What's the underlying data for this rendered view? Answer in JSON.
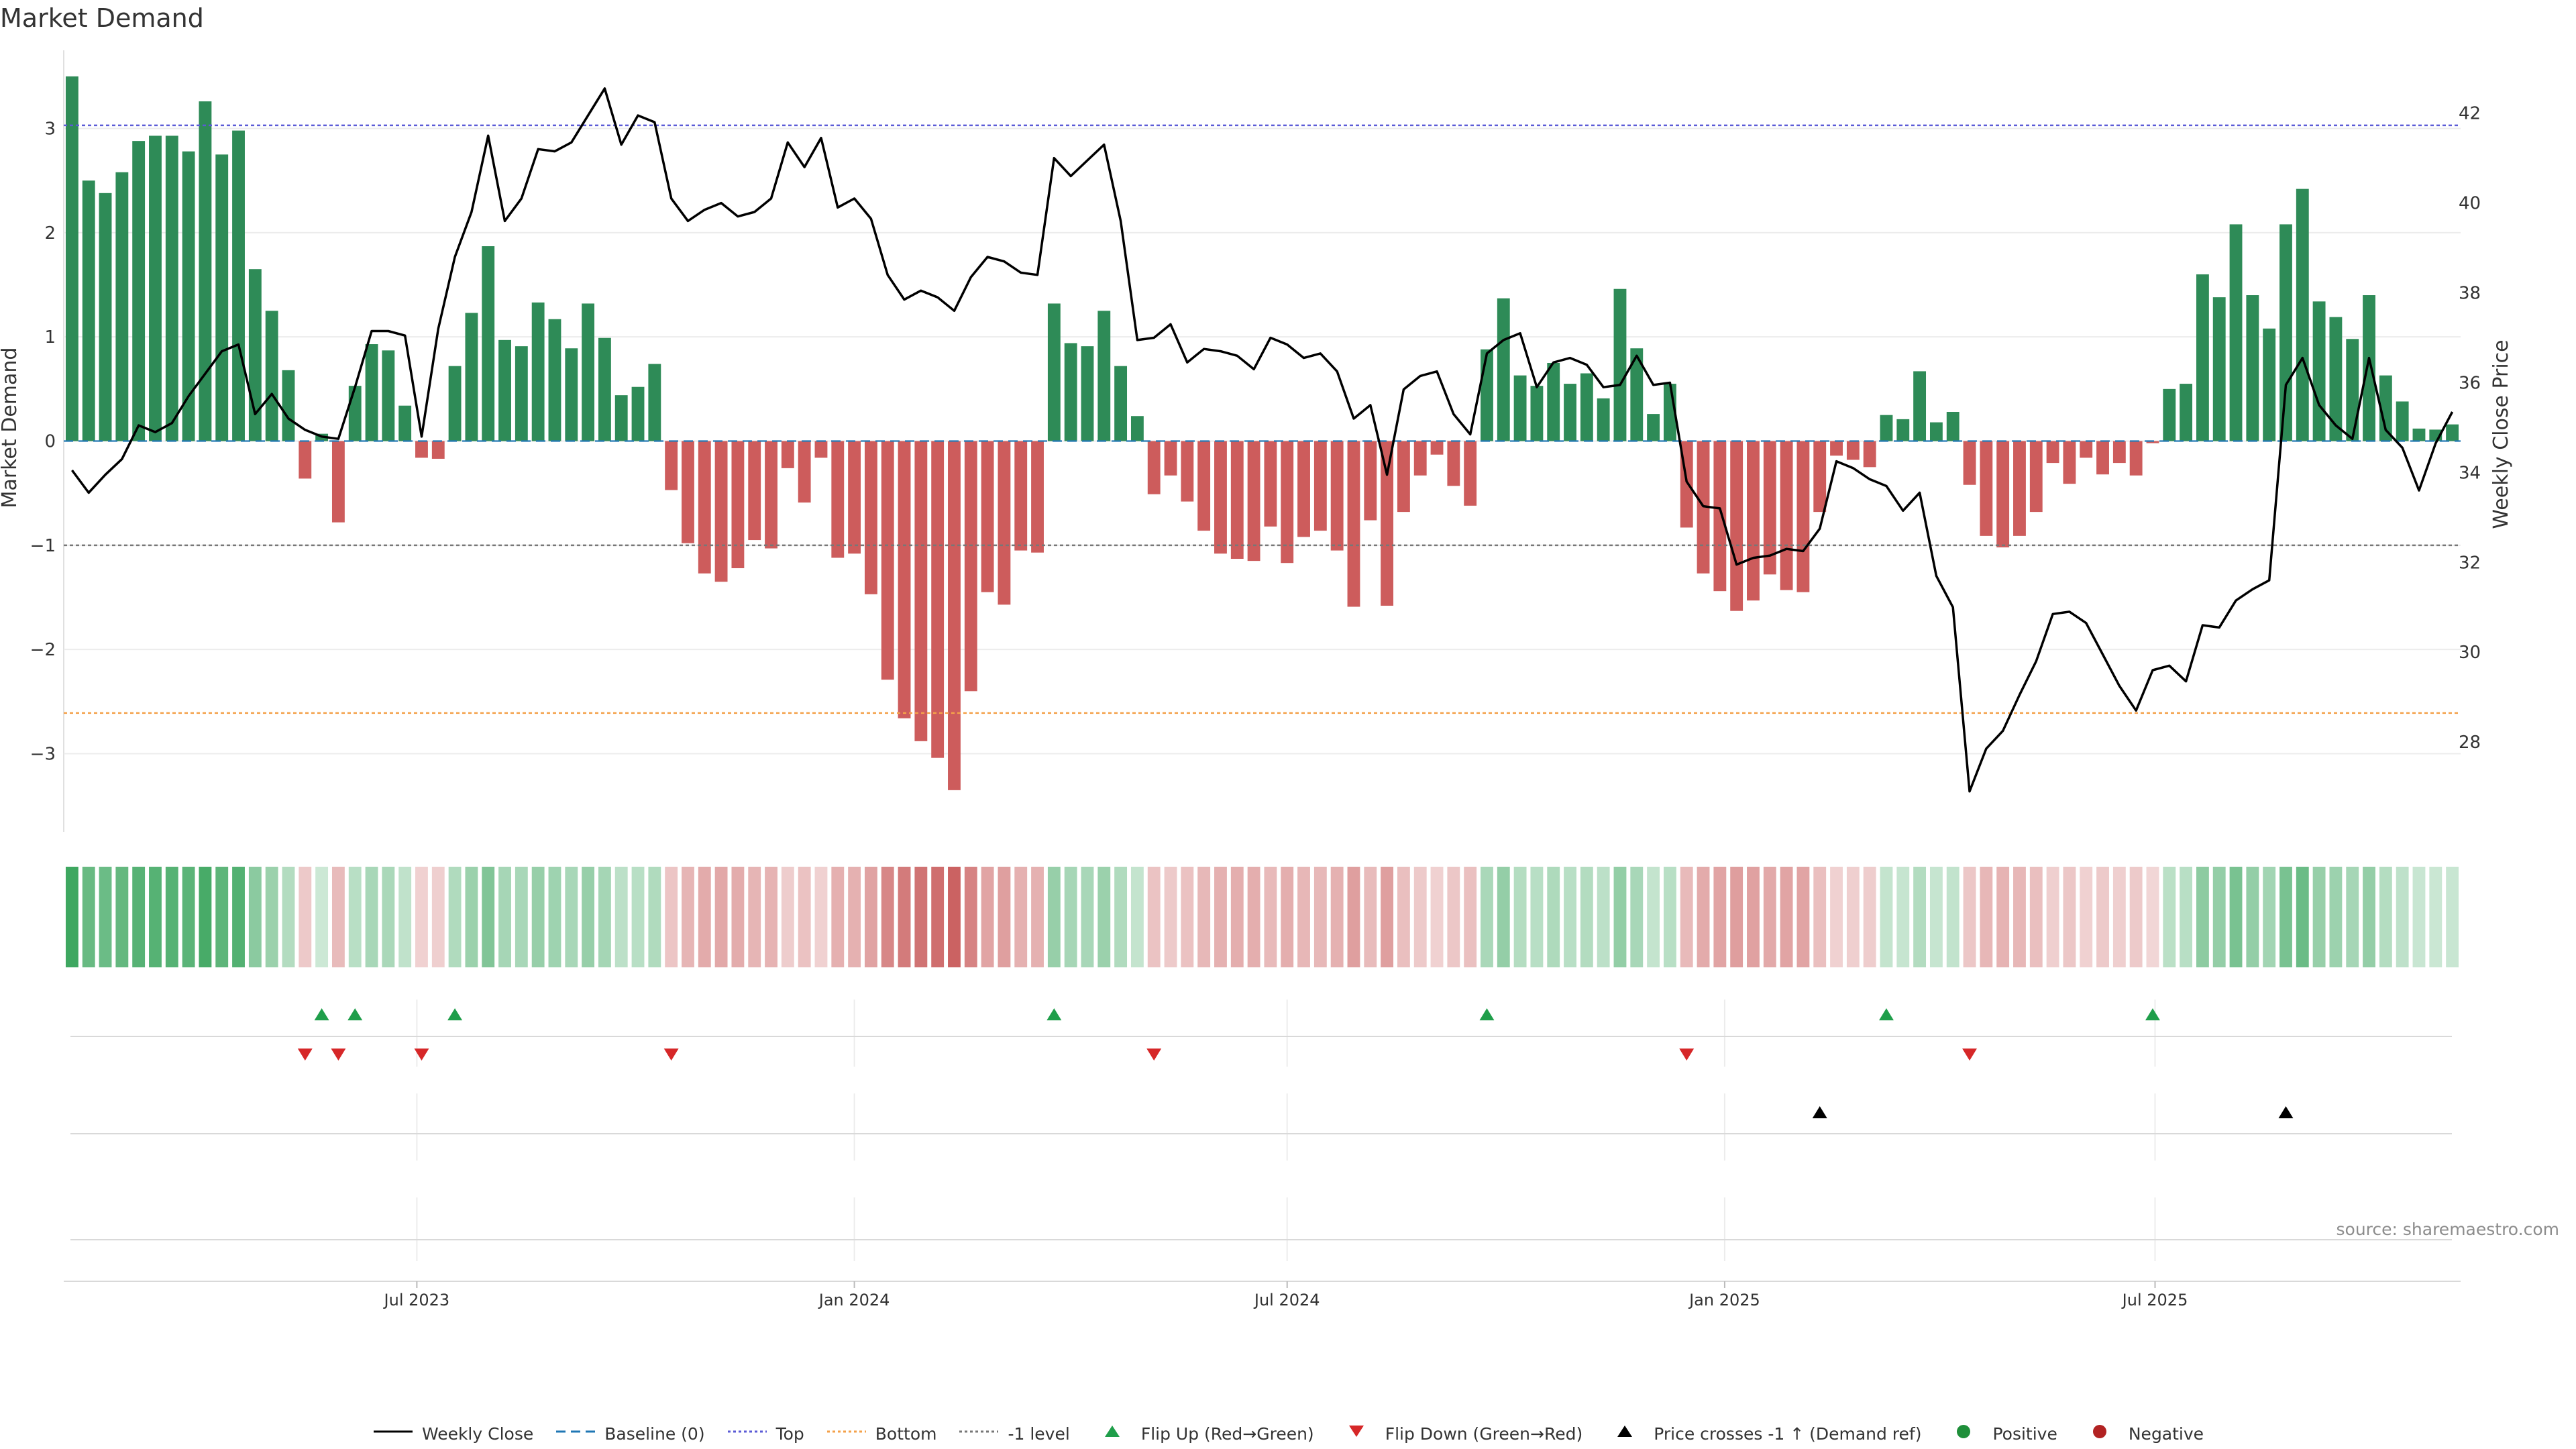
{
  "chart_data": {
    "type": "bar",
    "title": "Market Demand",
    "ylabel": "Market Demand",
    "y2label": "Weekly Close Price",
    "ylim": [
      -3.75,
      3.75
    ],
    "y2lim": [
      26.0,
      43.4
    ],
    "yticks": [
      -3,
      -2,
      -1,
      0,
      1,
      2,
      3
    ],
    "y2ticks": [
      28,
      30,
      32,
      34,
      36,
      38,
      40,
      42
    ],
    "x_start": "2023-02-06",
    "x_end": "2025-10-13",
    "xticks": [
      "Jul 2023",
      "Jan 2024",
      "Jul 2024",
      "Jan 2025",
      "Jul 2025"
    ],
    "reference_lines": {
      "top": 3.03,
      "bottom": -2.61,
      "minus_one": -1.0,
      "baseline": 0
    },
    "colors": {
      "positive": "#2e8b57",
      "negative": "#cd5c5c",
      "price": "#000000",
      "top": "#5b5bd6",
      "bottom": "#f4a14a",
      "level": "#777777",
      "flip_up": "#1f9e4a",
      "flip_down": "#d62728"
    },
    "series": [
      {
        "name": "Market Demand",
        "values": [
          3.5,
          2.5,
          2.38,
          2.58,
          2.88,
          2.93,
          2.93,
          2.78,
          3.26,
          2.75,
          2.98,
          1.65,
          1.25,
          0.68,
          -0.36,
          0.07,
          -0.78,
          0.53,
          0.93,
          0.87,
          0.34,
          -0.16,
          -0.17,
          0.72,
          1.23,
          1.87,
          0.97,
          0.91,
          1.33,
          1.17,
          0.89,
          1.32,
          0.99,
          0.44,
          0.52,
          0.74,
          -0.47,
          -0.98,
          -1.27,
          -1.35,
          -1.22,
          -0.95,
          -1.03,
          -0.26,
          -0.59,
          -0.16,
          -1.12,
          -1.08,
          -1.47,
          -2.29,
          -2.66,
          -2.88,
          -3.04,
          -3.35,
          -2.4,
          -1.45,
          -1.57,
          -1.05,
          -1.07,
          1.32,
          0.94,
          0.91,
          1.25,
          0.72,
          0.24,
          -0.51,
          -0.33,
          -0.58,
          -0.86,
          -1.08,
          -1.13,
          -1.15,
          -0.82,
          -1.17,
          -0.92,
          -0.86,
          -1.05,
          -1.59,
          -0.76,
          -1.58,
          -0.68,
          -0.33,
          -0.13,
          -0.43,
          -0.62,
          0.88,
          1.37,
          0.63,
          0.53,
          0.75,
          0.55,
          0.65,
          0.41,
          1.46,
          0.89,
          0.26,
          0.55,
          -0.83,
          -1.27,
          -1.44,
          -1.63,
          -1.53,
          -1.28,
          -1.43,
          -1.45,
          -0.68,
          -0.14,
          -0.18,
          -0.25,
          0.25,
          0.21,
          0.67,
          0.18,
          0.28,
          -0.42,
          -0.91,
          -1.02,
          -0.91,
          -0.68,
          -0.21,
          -0.41,
          -0.16,
          -0.32,
          -0.21,
          -0.33,
          -0.02,
          0.5,
          0.55,
          1.6,
          1.38,
          2.08,
          1.4,
          1.08,
          2.08,
          2.42,
          1.34,
          1.19,
          0.98,
          1.4,
          0.63,
          0.38,
          0.12,
          0.11,
          0.16
        ]
      },
      {
        "name": "Weekly Close",
        "values": [
          34.05,
          33.55,
          33.95,
          34.3,
          35.05,
          34.9,
          35.1,
          35.7,
          36.2,
          36.7,
          36.85,
          35.3,
          35.75,
          35.2,
          34.95,
          34.8,
          34.75,
          35.9,
          37.15,
          37.15,
          37.05,
          34.8,
          37.2,
          38.8,
          39.8,
          41.5,
          39.6,
          40.1,
          41.2,
          41.15,
          41.35,
          41.95,
          42.55,
          41.3,
          41.95,
          41.8,
          40.1,
          39.6,
          39.85,
          40.0,
          39.7,
          39.8,
          40.1,
          41.35,
          40.8,
          41.45,
          39.9,
          40.1,
          39.65,
          38.4,
          37.85,
          38.05,
          37.9,
          37.6,
          38.35,
          38.8,
          38.7,
          38.45,
          38.4,
          41.0,
          40.6,
          40.95,
          41.3,
          39.6,
          36.95,
          37.0,
          37.3,
          36.45,
          36.75,
          36.7,
          36.6,
          36.3,
          37.0,
          36.85,
          36.55,
          36.65,
          36.25,
          35.2,
          35.5,
          33.95,
          35.85,
          36.15,
          36.25,
          35.3,
          34.85,
          36.65,
          36.95,
          37.1,
          35.9,
          36.45,
          36.55,
          36.4,
          35.9,
          35.95,
          36.6,
          35.95,
          36.0,
          33.8,
          33.25,
          33.2,
          31.95,
          32.1,
          32.15,
          32.3,
          32.25,
          32.75,
          34.25,
          34.1,
          33.85,
          33.7,
          33.15,
          33.55,
          31.7,
          31.0,
          26.9,
          27.85,
          28.25,
          29.05,
          29.8,
          30.85,
          30.9,
          30.65,
          29.95,
          29.25,
          28.7,
          29.6,
          29.7,
          29.35,
          30.6,
          30.55,
          31.15,
          31.4,
          31.6,
          35.95,
          36.55,
          35.5,
          35.05,
          34.75,
          36.55,
          34.95,
          34.55,
          33.6,
          34.65,
          35.35
        ]
      }
    ],
    "flips_up": [
      15,
      17,
      23,
      59,
      85,
      109,
      125
    ],
    "flips_down": [
      14,
      16,
      21,
      36,
      65,
      97,
      114
    ],
    "price_crosses": [
      105,
      133
    ],
    "source_text": "source: sharemaestro.com",
    "legend": [
      {
        "label": "Weekly Close",
        "icon": "line-solid-black"
      },
      {
        "label": "Baseline (0)",
        "icon": "line-dashed-blue"
      },
      {
        "label": "Top",
        "icon": "line-dotted-purple"
      },
      {
        "label": "Bottom",
        "icon": "line-dotted-orange"
      },
      {
        "label": "-1 level",
        "icon": "line-dotted-gray"
      },
      {
        "label": "Flip Up (Red→Green)",
        "icon": "triangle-up-green"
      },
      {
        "label": "Flip Down (Green→Red)",
        "icon": "triangle-down-red"
      },
      {
        "label": "Price crosses -1 ↑ (Demand ref)",
        "icon": "triangle-up-black"
      },
      {
        "label": "Positive",
        "icon": "circle-green"
      },
      {
        "label": "Negative",
        "icon": "circle-red"
      }
    ]
  }
}
